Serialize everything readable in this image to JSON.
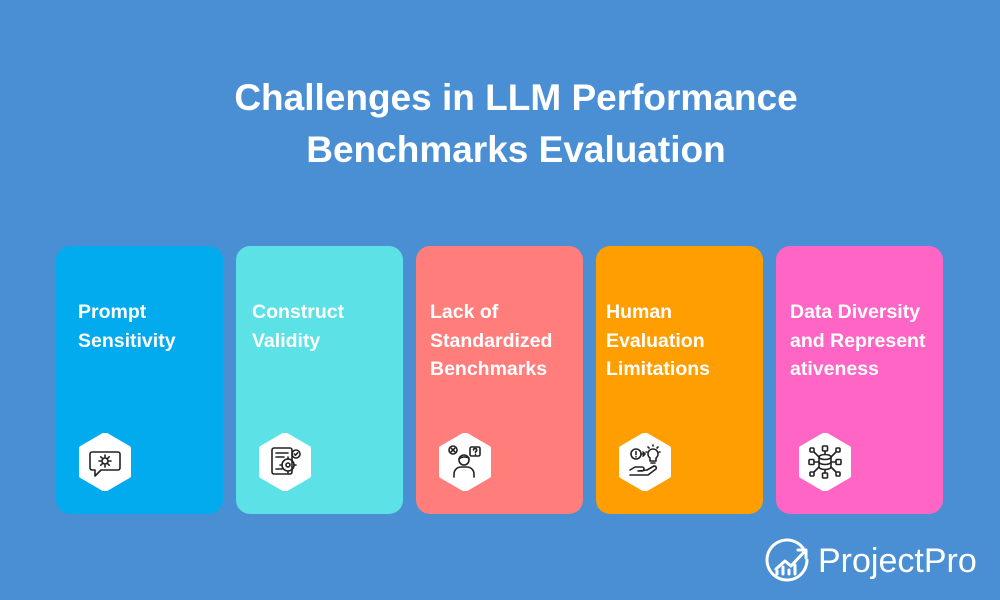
{
  "title": {
    "line1": "Challenges in LLM Performance",
    "line2": "Benchmarks Evaluation"
  },
  "cards": [
    {
      "label": "Prompt Sensitivity",
      "icon": "chat-gear-icon",
      "color": "#02aaee"
    },
    {
      "label": "Construct Validity",
      "icon": "document-gear-icon",
      "color": "#5ce2e6"
    },
    {
      "label": "Lack of Standardized Benchmarks",
      "icon": "person-question-icon",
      "color": "#ff7e7c"
    },
    {
      "label": "Human Evaluation Limitations",
      "icon": "hand-lightbulb-icon",
      "color": "#ff9e01"
    },
    {
      "label": "Data Diversity and Representativeness",
      "icon": "database-network-icon",
      "color": "#ff65c4"
    }
  ],
  "brand": {
    "name": "ProjectPro",
    "logo_icon": "projectpro-logo-icon"
  }
}
